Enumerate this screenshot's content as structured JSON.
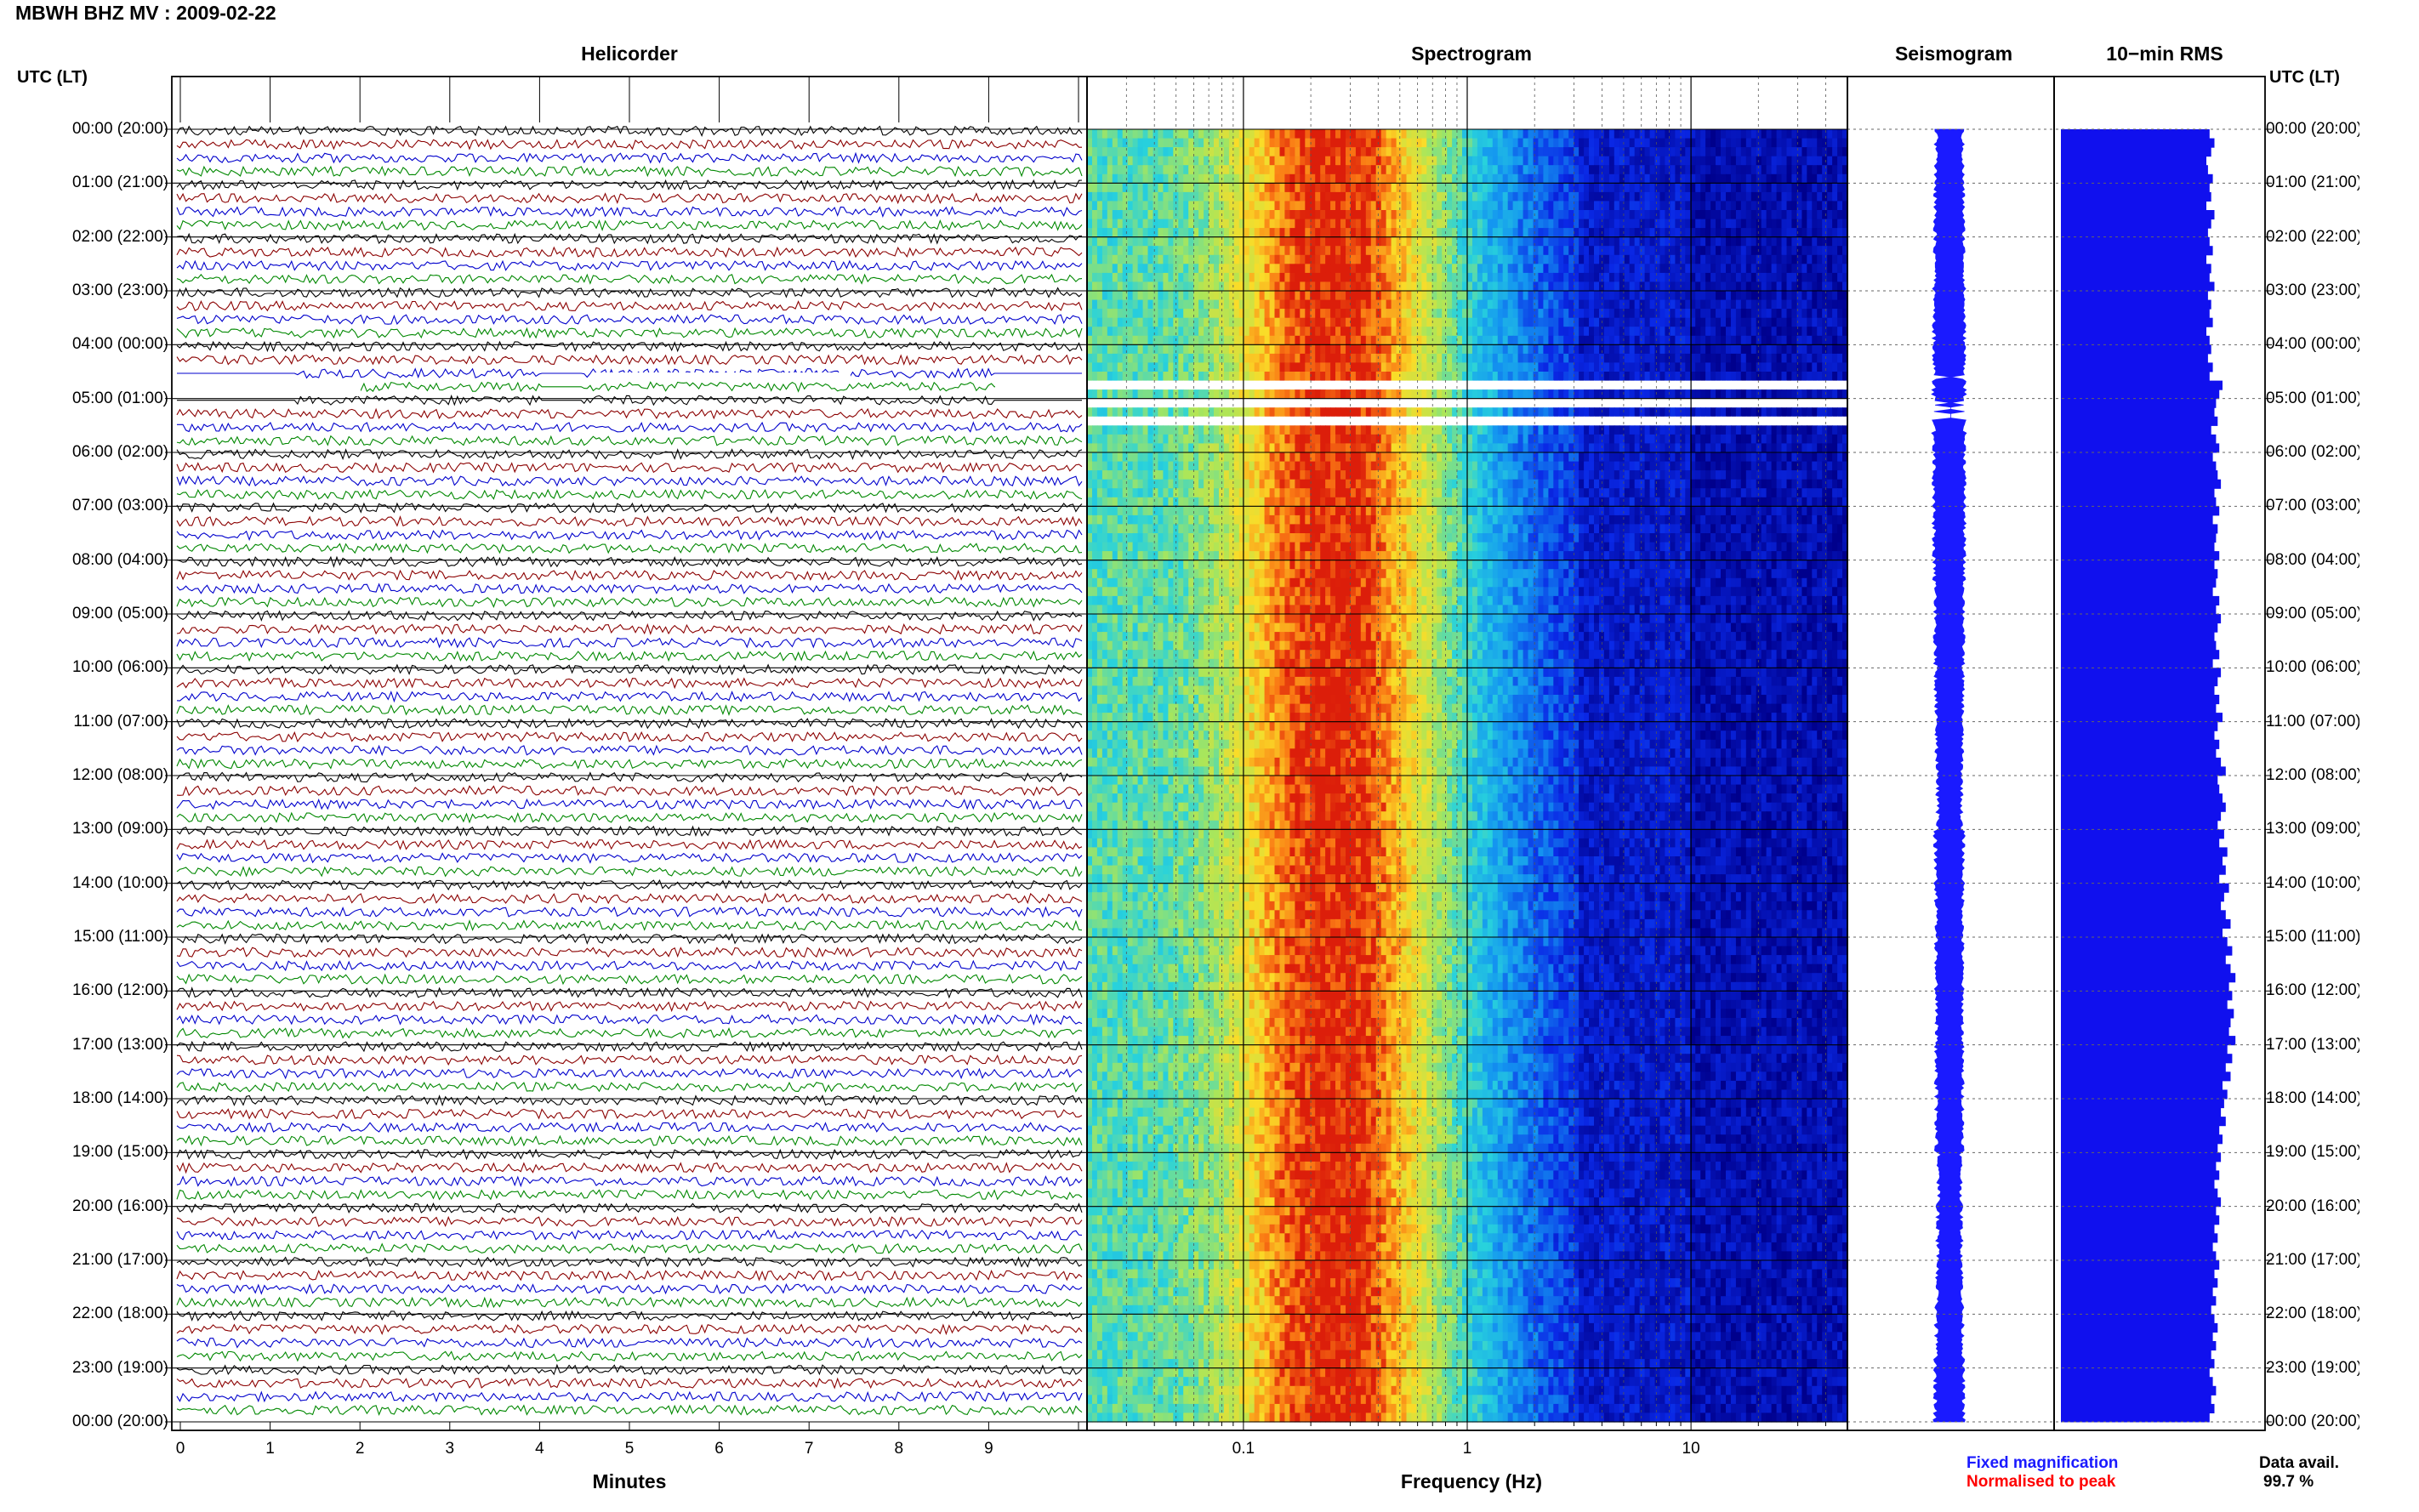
{
  "header": {
    "title": "MBWH BHZ MV : 2009-02-22"
  },
  "panels": {
    "helicorder": "Helicorder",
    "spectrogram": "Spectrogram",
    "seismogram": "Seismogram",
    "rms": "10−min RMS"
  },
  "axis_labels": {
    "left_time": "UTC (LT)",
    "right_time": "UTC (LT)",
    "minutes": "Minutes",
    "frequency": "Frequency (Hz)"
  },
  "time_ticks": [
    "00:00 (20:00)",
    "01:00 (21:00)",
    "02:00 (22:00)",
    "03:00 (23:00)",
    "04:00 (00:00)",
    "05:00 (01:00)",
    "06:00 (02:00)",
    "07:00 (03:00)",
    "08:00 (04:00)",
    "09:00 (05:00)",
    "10:00 (06:00)",
    "11:00 (07:00)",
    "12:00 (08:00)",
    "13:00 (09:00)",
    "14:00 (10:00)",
    "15:00 (11:00)",
    "16:00 (12:00)",
    "17:00 (13:00)",
    "18:00 (14:00)",
    "19:00 (15:00)",
    "20:00 (16:00)",
    "21:00 (17:00)",
    "22:00 (18:00)",
    "23:00 (19:00)",
    "00:00 (20:00)"
  ],
  "minute_ticks": [
    "0",
    "1",
    "2",
    "3",
    "4",
    "5",
    "6",
    "7",
    "8",
    "9"
  ],
  "frequency_ticks": [
    "0.1",
    "1",
    "10"
  ],
  "legend": {
    "fixed": "Fixed magnification",
    "normalised": "Normalised to peak",
    "data_avail_label": "Data avail.",
    "data_avail_value": "99.7 %"
  },
  "colors": {
    "trace_colors": [
      "#000000",
      "#8b0000",
      "#0000cc",
      "#008800"
    ],
    "fixed_blue": "#1a1aff",
    "normalised_red": "#ff0000",
    "rms_blue": "#1010ee"
  },
  "chart_data": {
    "type": "heatmap",
    "hours_start": 0,
    "hours_end": 24,
    "frequency_range_hz": [
      0.02,
      50
    ],
    "frequency_scale": "log",
    "minutes_range": [
      0,
      10
    ],
    "spectrogram_peak_hz": 0.2,
    "data_gap_hours": [
      4.6,
      5.4
    ],
    "rms_10min_relative": [
      0.92,
      0.95,
      0.93,
      0.9,
      0.91,
      0.94,
      0.92,
      0.93,
      0.9,
      0.95,
      0.93,
      0.91,
      0.92,
      0.94,
      0.9,
      0.93,
      0.92,
      0.95,
      0.91,
      0.93,
      0.92,
      0.94,
      0.9,
      0.92,
      0.93,
      0.91,
      0.94,
      0.92,
      1.0,
      0.98,
      0.96,
      0.95,
      0.97,
      0.93,
      0.96,
      0.98,
      0.94,
      0.96,
      0.97,
      0.99,
      0.95,
      0.96,
      0.98,
      0.94,
      0.97,
      0.96,
      0.95,
      0.98,
      0.95,
      0.97,
      0.96,
      0.94,
      0.98,
      0.96,
      0.99,
      0.97,
      0.95,
      0.96,
      0.98,
      0.94,
      0.99,
      0.97,
      0.95,
      0.98,
      0.96,
      1.0,
      0.97,
      0.95,
      0.98,
      0.96,
      0.99,
      1.02,
      0.97,
      0.98,
      1.0,
      1.02,
      0.99,
      0.97,
      1.01,
      0.98,
      1.03,
      1.0,
      1.02,
      0.98,
      1.04,
      1.01,
      0.99,
      1.02,
      1.05,
      1.0,
      1.03,
      1.06,
      1.02,
      1.05,
      1.08,
      1.04,
      1.06,
      1.03,
      1.07,
      1.05,
      1.04,
      1.08,
      1.03,
      1.06,
      1.02,
      1.05,
      1.0,
      1.03,
      1.01,
      0.99,
      1.02,
      0.98,
      1.0,
      0.97,
      0.99,
      0.96,
      0.98,
      0.95,
      0.97,
      0.99,
      0.96,
      0.98,
      0.95,
      0.97,
      0.94,
      0.96,
      0.98,
      0.95,
      0.97,
      0.94,
      0.96,
      0.93,
      0.95,
      0.97,
      0.94,
      0.96,
      0.93,
      0.95,
      0.92,
      0.94,
      0.96,
      0.93,
      0.95,
      0.92
    ]
  }
}
